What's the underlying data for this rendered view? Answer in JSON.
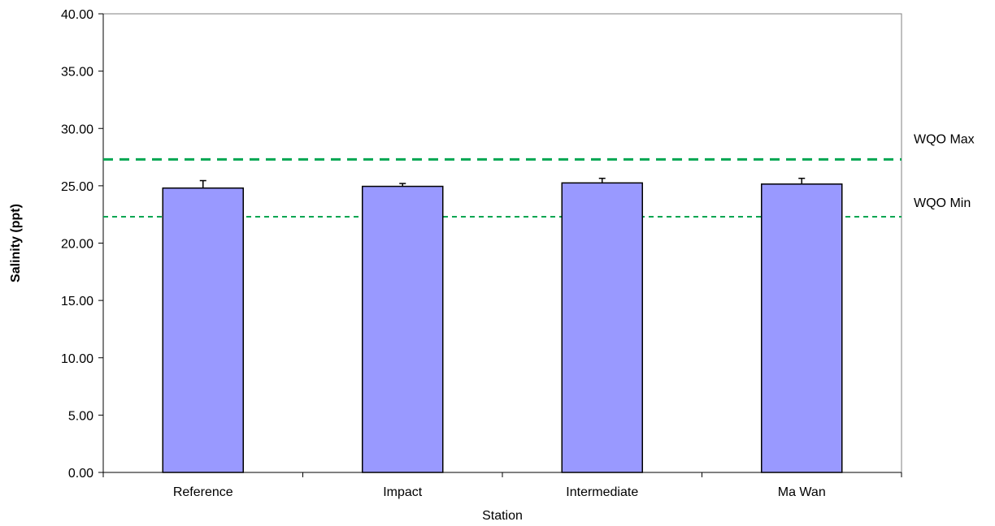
{
  "chart_data": {
    "type": "bar",
    "categories": [
      "Reference",
      "Impact",
      "Intermediate",
      "Ma Wan"
    ],
    "values": [
      24.8,
      24.95,
      25.25,
      25.15
    ],
    "error_plus": [
      0.65,
      0.25,
      0.4,
      0.5
    ],
    "title": "",
    "xlabel": "Station",
    "ylabel": "Salinity (ppt)",
    "ylim": [
      0,
      40
    ],
    "y_ticks": [
      "0.00",
      "5.00",
      "10.00",
      "15.00",
      "20.00",
      "25.00",
      "30.00",
      "35.00",
      "40.00"
    ],
    "grid": false,
    "legend": "none",
    "bar_color": "#9999ff",
    "reference_lines": [
      {
        "label": "WQO Max",
        "value": 27.3,
        "color": "#00a651",
        "style": "dashed-thick"
      },
      {
        "label": "WQO Min",
        "value": 22.3,
        "color": "#00a651",
        "style": "dashed-thin"
      }
    ]
  }
}
